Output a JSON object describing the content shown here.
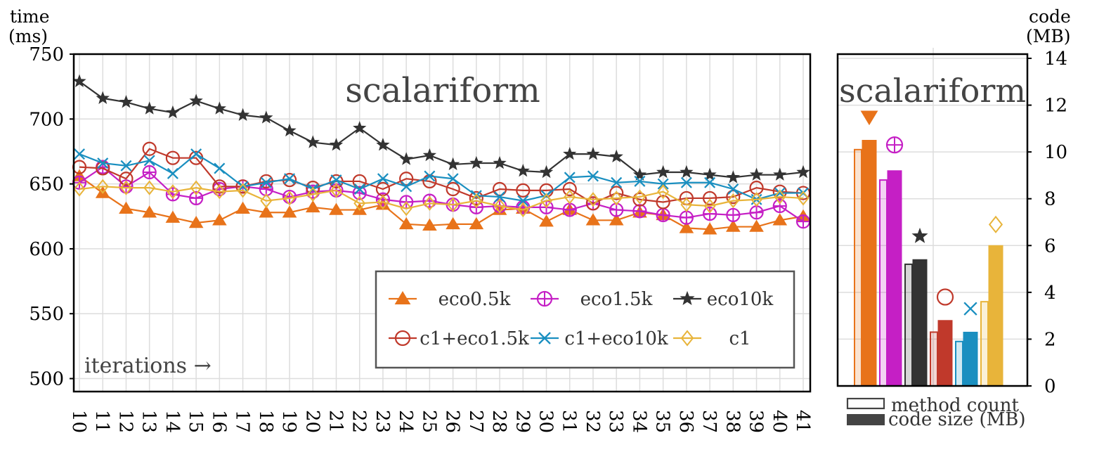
{
  "chart_data": [
    {
      "type": "line",
      "title": "scalariform",
      "ylabel_line1": "time",
      "ylabel_line2": "(ms)",
      "xlabel": "iterations →",
      "x": [
        10,
        11,
        12,
        13,
        14,
        15,
        16,
        17,
        18,
        19,
        20,
        21,
        22,
        23,
        24,
        25,
        26,
        27,
        28,
        29,
        30,
        31,
        32,
        33,
        34,
        35,
        36,
        37,
        38,
        39,
        40,
        41
      ],
      "ylim": [
        490,
        750
      ],
      "yticks": [
        500,
        550,
        600,
        650,
        700,
        750
      ],
      "grid": true,
      "legend_position": "bottom-right",
      "series": [
        {
          "name": "eco0.5k",
          "marker": "triangle-up",
          "color": "#E8731A",
          "values": [
            656,
            643,
            631,
            628,
            624,
            620,
            622,
            631,
            628,
            628,
            632,
            630,
            630,
            634,
            619,
            618,
            619,
            619,
            630,
            631,
            621,
            630,
            622,
            622,
            628,
            626,
            616,
            615,
            617,
            617,
            622,
            625
          ]
        },
        {
          "name": "eco1.5k",
          "marker": "circle-plus",
          "color": "#C51FC5",
          "values": [
            651,
            663,
            648,
            659,
            642,
            639,
            646,
            648,
            646,
            640,
            644,
            645,
            643,
            638,
            636,
            637,
            634,
            632,
            633,
            632,
            632,
            630,
            635,
            630,
            629,
            626,
            624,
            627,
            626,
            628,
            633,
            621
          ]
        },
        {
          "name": "eco10k",
          "marker": "star",
          "color": "#333333",
          "values": [
            729,
            716,
            713,
            708,
            705,
            714,
            708,
            703,
            701,
            691,
            682,
            680,
            693,
            680,
            669,
            672,
            665,
            666,
            666,
            660,
            659,
            673,
            673,
            671,
            657,
            659,
            659,
            657,
            655,
            657,
            657,
            659
          ]
        },
        {
          "name": "c1+eco1.5k",
          "marker": "circle",
          "color": "#C0392B",
          "values": [
            663,
            662,
            654,
            677,
            670,
            670,
            648,
            648,
            652,
            653,
            647,
            652,
            652,
            646,
            654,
            652,
            646,
            639,
            646,
            645,
            645,
            646,
            635,
            643,
            638,
            636,
            639,
            639,
            640,
            647,
            644,
            643
          ]
        },
        {
          "name": "c1+eco10k",
          "marker": "x",
          "color": "#1A8FC0",
          "values": [
            673,
            666,
            664,
            668,
            658,
            673,
            662,
            648,
            651,
            654,
            646,
            653,
            646,
            654,
            648,
            656,
            654,
            641,
            640,
            637,
            641,
            655,
            656,
            651,
            652,
            650,
            651,
            651,
            646,
            638,
            643,
            643
          ]
        },
        {
          "name": "c1",
          "marker": "diamond",
          "color": "#E8B43A",
          "values": [
            646,
            648,
            647,
            647,
            644,
            647,
            644,
            645,
            637,
            639,
            642,
            645,
            635,
            636,
            631,
            635,
            634,
            637,
            633,
            630,
            637,
            640,
            638,
            639,
            640,
            644,
            634,
            633,
            637,
            638,
            640,
            639
          ]
        }
      ]
    },
    {
      "type": "bar",
      "title": "scalariform",
      "ylabel_line1": "code",
      "ylabel_line2": "(MB)",
      "ylim": [
        0,
        14
      ],
      "yticks": [
        0,
        2,
        4,
        6,
        8,
        10,
        12,
        14
      ],
      "categories": [
        "eco0.5k",
        "eco1.5k",
        "eco10k",
        "c1+eco1.5k",
        "c1+eco10k",
        "c1"
      ],
      "colors": [
        "#E8731A",
        "#C51FC5",
        "#333333",
        "#C0392B",
        "#1A8FC0",
        "#E8B43A"
      ],
      "markers": [
        "triangle-down",
        "circle-plus",
        "star",
        "circle",
        "x",
        "diamond"
      ],
      "marker_values": [
        11.5,
        10.3,
        6.4,
        3.8,
        3.3,
        6.9
      ],
      "series": [
        {
          "name": "method count",
          "style": "outline",
          "values": [
            10.1,
            8.8,
            5.2,
            2.3,
            1.9,
            3.6
          ]
        },
        {
          "name": "code size (MB)",
          "style": "filled",
          "values": [
            10.5,
            9.2,
            5.4,
            2.8,
            2.3,
            6.0
          ]
        }
      ]
    }
  ]
}
